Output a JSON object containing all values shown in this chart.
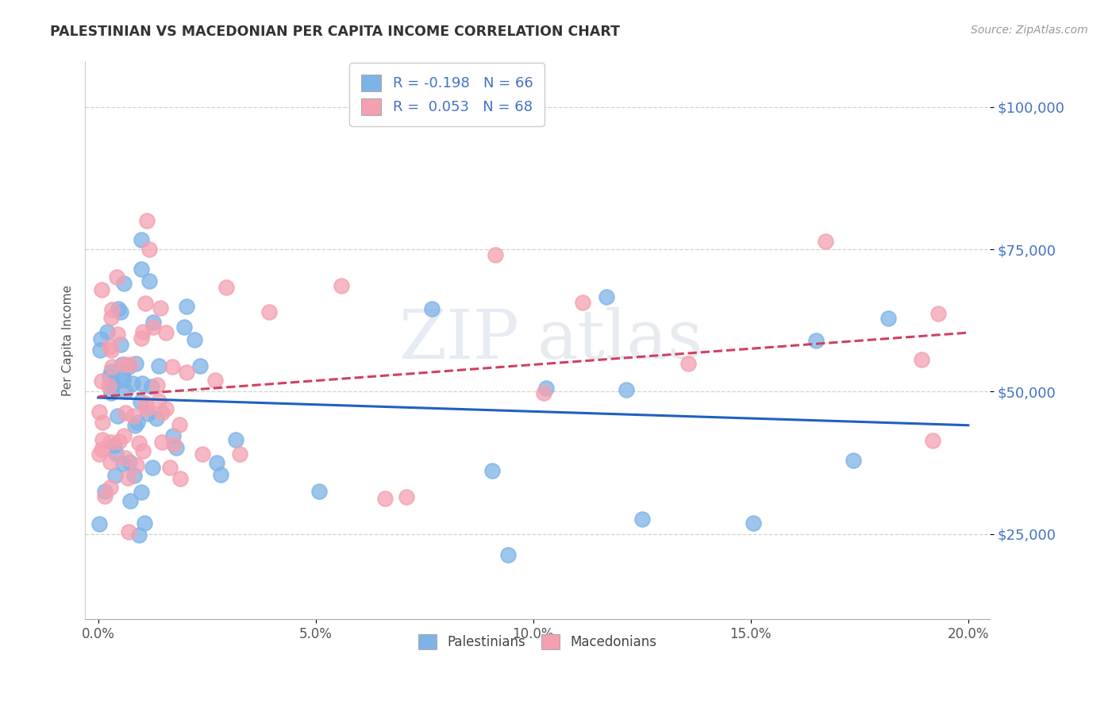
{
  "title": "PALESTINIAN VS MACEDONIAN PER CAPITA INCOME CORRELATION CHART",
  "source": "Source: ZipAtlas.com",
  "ylabel": "Per Capita Income",
  "xlabel_ticks": [
    "0.0%",
    "5.0%",
    "10.0%",
    "15.0%",
    "20.0%"
  ],
  "xlabel_vals": [
    0.0,
    0.05,
    0.1,
    0.15,
    0.2
  ],
  "ytick_labels": [
    "$25,000",
    "$50,000",
    "$75,000",
    "$100,000"
  ],
  "ytick_vals": [
    25000,
    50000,
    75000,
    100000
  ],
  "blue_color": "#7EB3E8",
  "pink_color": "#F4A0B0",
  "blue_line_color": "#2060C0",
  "pink_line_color": "#D04060",
  "legend_blue_label": "R = -0.198   N = 66",
  "legend_pink_label": "R =  0.053   N = 68",
  "legend_blue_series": "Palestinians",
  "legend_pink_series": "Macedonians",
  "r_blue": -0.198,
  "n_blue": 66,
  "r_pink": 0.053,
  "n_pink": 68,
  "ylim_min": 10000,
  "ylim_max": 108000,
  "xlim_min": -0.003,
  "xlim_max": 0.205
}
